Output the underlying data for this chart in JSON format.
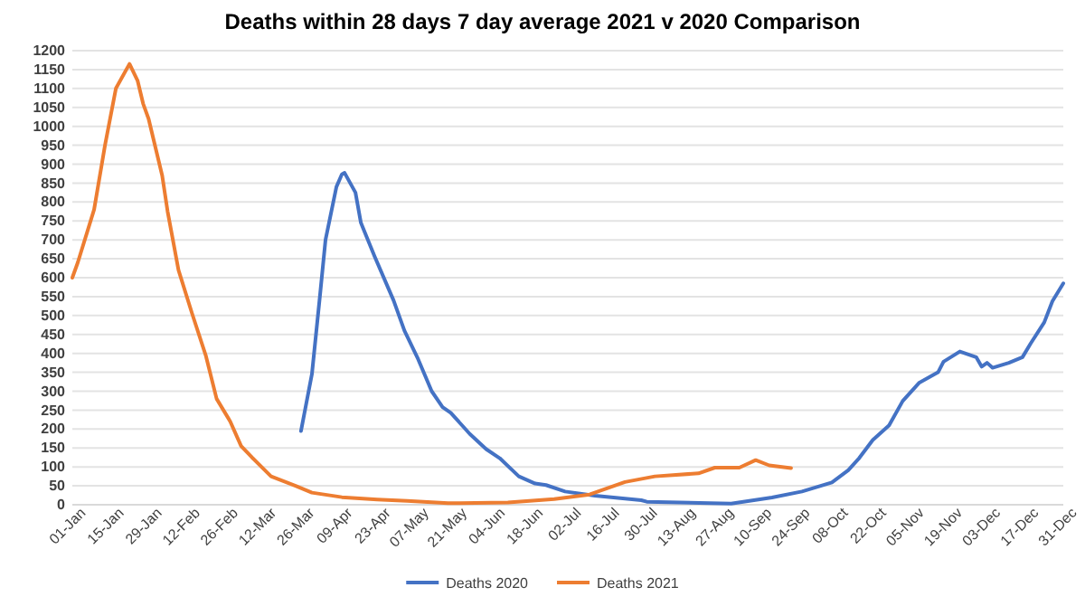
{
  "chart_data": {
    "type": "line",
    "title": "Deaths within 28 days 7 day average 2021 v 2020 Comparison",
    "xlim": [
      "--01-01",
      "--12-31"
    ],
    "xticks": [
      {
        "value": "--01-01",
        "label": "01-Jan"
      },
      {
        "value": "--01-15",
        "label": "15-Jan"
      },
      {
        "value": "--01-29",
        "label": "29-Jan"
      },
      {
        "value": "--02-12",
        "label": "12-Feb"
      },
      {
        "value": "--02-26",
        "label": "26-Feb"
      },
      {
        "value": "--03-12",
        "label": "12-Mar"
      },
      {
        "value": "--03-26",
        "label": "26-Mar"
      },
      {
        "value": "--04-09",
        "label": "09-Apr"
      },
      {
        "value": "--04-23",
        "label": "23-Apr"
      },
      {
        "value": "--05-07",
        "label": "07-May"
      },
      {
        "value": "--05-21",
        "label": "21-May"
      },
      {
        "value": "--06-04",
        "label": "04-Jun"
      },
      {
        "value": "--06-18",
        "label": "18-Jun"
      },
      {
        "value": "--07-02",
        "label": "02-Jul"
      },
      {
        "value": "--07-16",
        "label": "16-Jul"
      },
      {
        "value": "--07-30",
        "label": "30-Jul"
      },
      {
        "value": "--08-13",
        "label": "13-Aug"
      },
      {
        "value": "--08-27",
        "label": "27-Aug"
      },
      {
        "value": "--09-10",
        "label": "10-Sep"
      },
      {
        "value": "--09-24",
        "label": "24-Sep"
      },
      {
        "value": "--10-08",
        "label": "08-Oct"
      },
      {
        "value": "--10-22",
        "label": "22-Oct"
      },
      {
        "value": "--11-05",
        "label": "05-Nov"
      },
      {
        "value": "--11-19",
        "label": "19-Nov"
      },
      {
        "value": "--12-03",
        "label": "03-Dec"
      },
      {
        "value": "--12-17",
        "label": "17-Dec"
      },
      {
        "value": "--12-31",
        "label": "31-Dec"
      }
    ],
    "ylim": [
      0,
      1200
    ],
    "yticks": [
      0,
      50,
      100,
      150,
      200,
      250,
      300,
      350,
      400,
      450,
      500,
      550,
      600,
      650,
      700,
      750,
      800,
      850,
      900,
      950,
      1000,
      1050,
      1100,
      1150,
      1200
    ],
    "grid": "y",
    "legend": "bottom",
    "series": [
      {
        "name": "Deaths 2020",
        "color": "#4472c4",
        "x": [
          "--03-26",
          "--03-30",
          "--04-02",
          "--04-04",
          "--04-08",
          "--04-10",
          "--04-11",
          "--04-15",
          "--04-17",
          "--04-22",
          "--04-29",
          "--05-03",
          "--05-08",
          "--05-13",
          "--05-17",
          "--05-20",
          "--05-27",
          "--06-02",
          "--06-07",
          "--06-14",
          "--06-20",
          "--06-24",
          "--07-01",
          "--07-12",
          "--07-29",
          "--07-31",
          "--08-31",
          "--09-15",
          "--09-26",
          "--10-07",
          "--10-13",
          "--10-17",
          "--10-22",
          "--10-28",
          "--11-02",
          "--11-08",
          "--11-15",
          "--11-17",
          "--11-23",
          "--11-29",
          "--12-01",
          "--12-03",
          "--12-05",
          "--12-11",
          "--12-16",
          "--12-19",
          "--12-24",
          "--12-27",
          "--12-31"
        ],
        "values": [
          195,
          345,
          555,
          700,
          840,
          873,
          877,
          825,
          745,
          657,
          540,
          460,
          385,
          300,
          258,
          243,
          187,
          147,
          123,
          75,
          56,
          52,
          35,
          24,
          12,
          8,
          3,
          19,
          35,
          59,
          91,
          123,
          171,
          210,
          274,
          322,
          350,
          378,
          405,
          390,
          365,
          375,
          362,
          375,
          390,
          426,
          482,
          538,
          585
        ]
      },
      {
        "name": "Deaths 2021",
        "color": "#ed7d31",
        "x": [
          "--01-01",
          "--01-03",
          "--01-09",
          "--01-13",
          "--01-17",
          "--01-22",
          "--01-25",
          "--01-27",
          "--01-29",
          "--02-03",
          "--02-05",
          "--02-09",
          "--02-14",
          "--02-19",
          "--02-23",
          "--02-28",
          "--03-04",
          "--03-08",
          "--03-15",
          "--03-24",
          "--03-30",
          "--04-10",
          "--04-23",
          "--05-04",
          "--05-19",
          "--06-10",
          "--06-27",
          "--07-10",
          "--07-23",
          "--08-03",
          "--08-19",
          "--08-25",
          "--09-03",
          "--09-09",
          "--09-14",
          "--09-22"
        ],
        "values": [
          600,
          640,
          780,
          950,
          1100,
          1165,
          1120,
          1060,
          1020,
          870,
          775,
          620,
          505,
          395,
          280,
          220,
          155,
          125,
          75,
          50,
          32,
          20,
          14,
          10,
          4,
          6,
          15,
          27,
          60,
          75,
          83,
          98,
          98,
          118,
          104,
          97
        ]
      }
    ]
  }
}
